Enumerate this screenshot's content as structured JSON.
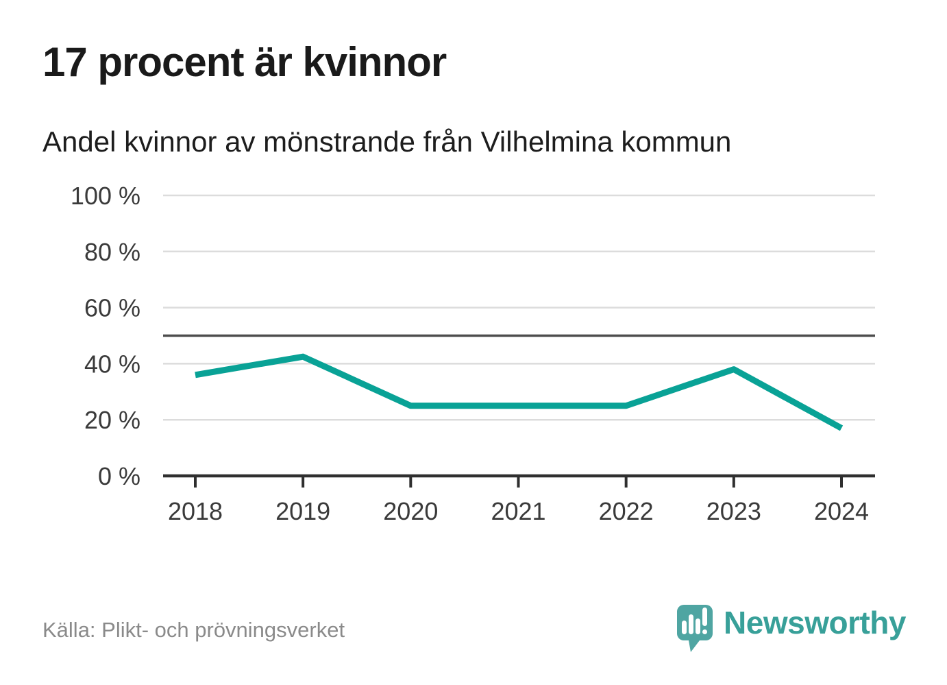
{
  "header": {
    "title": "17 procent är kvinnor",
    "subtitle": "Andel kvinnor av mönstrande från Vilhelmina kommun"
  },
  "chart_data": {
    "type": "line",
    "title": "17 procent är kvinnor",
    "subtitle": "Andel kvinnor av mönstrande från Vilhelmina kommun",
    "categories": [
      "2018",
      "2019",
      "2020",
      "2021",
      "2022",
      "2023",
      "2024"
    ],
    "series": [
      {
        "name": "Andel kvinnor av mönstrande",
        "values": [
          36,
          42.5,
          25,
          25,
          25,
          38,
          17
        ]
      }
    ],
    "unit": "%",
    "ylim": [
      0,
      100
    ],
    "y_ticks": [
      {
        "value": 0,
        "label": "0 %"
      },
      {
        "value": 20,
        "label": "20 %"
      },
      {
        "value": 40,
        "label": "40 %"
      },
      {
        "value": 60,
        "label": "60 %"
      },
      {
        "value": 80,
        "label": "80 %"
      },
      {
        "value": 100,
        "label": "100 %"
      }
    ],
    "reference_line": {
      "value": 50
    },
    "grid": "horizontal",
    "legend": "none",
    "colors": {
      "line": "#09a296",
      "gridline": "#dcdcdc",
      "reference_line": "#4d4d4d",
      "axis": "#2f2f2f",
      "tick_label": "#3a3a3a"
    }
  },
  "footer": {
    "source": "Källa: Plikt- och prövningsverket",
    "brand": "Newsworthy",
    "brand_color": "#38a099",
    "logo_bubble_color": "#4fa5a2"
  }
}
